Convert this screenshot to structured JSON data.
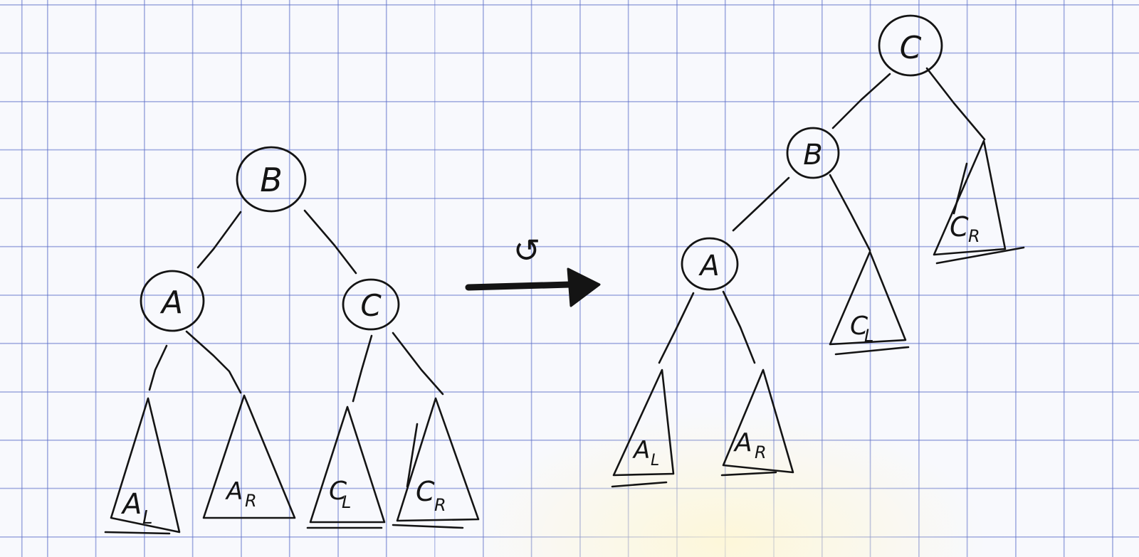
{
  "before": {
    "nodes": {
      "root": "B",
      "left": "A",
      "right": "C"
    },
    "subtrees": [
      {
        "main": "A",
        "sub": "L"
      },
      {
        "main": "A",
        "sub": "R"
      },
      {
        "main": "C",
        "sub": "L"
      },
      {
        "main": "C",
        "sub": "R"
      }
    ]
  },
  "transform": {
    "symbol": "↺"
  },
  "after": {
    "nodes": {
      "root": "C",
      "mid": "B",
      "low": "A"
    },
    "subtrees": [
      {
        "main": "C",
        "sub": "R"
      },
      {
        "main": "C",
        "sub": "L"
      },
      {
        "main": "A",
        "sub": "L"
      },
      {
        "main": "A",
        "sub": "R"
      }
    ]
  }
}
